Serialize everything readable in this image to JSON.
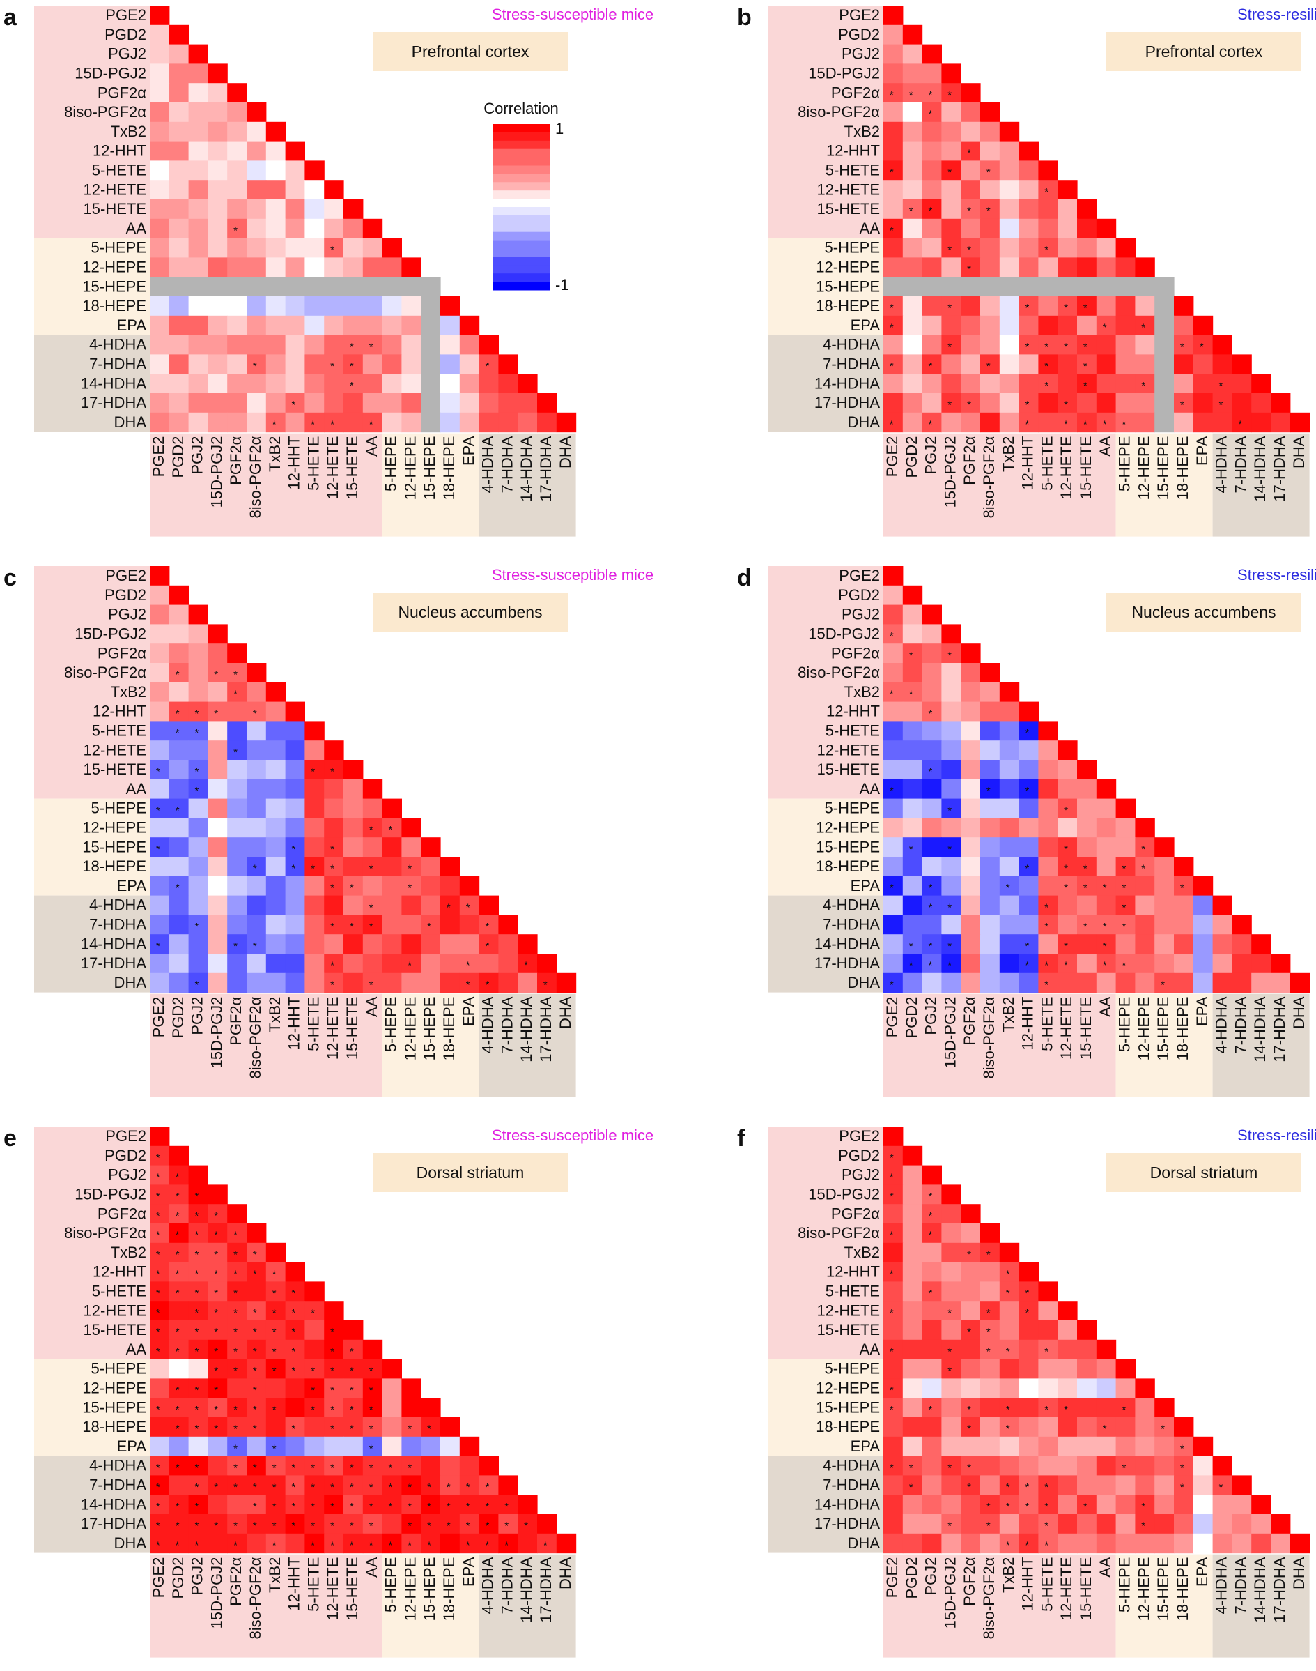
{
  "figure": {
    "legend": {
      "title": "Correlation",
      "max_label": "1",
      "min_label": "-1"
    },
    "star_symbol": "*",
    "colors": {
      "prostaglandin_group": "#fad7d7",
      "epa_group": "#fdf1e0",
      "dha_group": "#e2d9cf",
      "panel_title_box": "#fbe9cf",
      "missing": "#b4b4b4",
      "susceptible_text": "#e020e0",
      "resilient_text": "#2d2de0",
      "positive": "#ff0000",
      "negative": "#0000ff"
    }
  },
  "chart_data": [
    {
      "type": "heatmap",
      "panel": "a",
      "group_title": "Stress-susceptible mice",
      "title": "Prefrontal cortex",
      "labels": [
        "PGE2",
        "PGD2",
        "PGJ2",
        "15D-PGJ2",
        "PGF2α",
        "8iso-PGF2α",
        "TxB2",
        "12-HHT",
        "5-HETE",
        "12-HETE",
        "15-HETE",
        "AA",
        "5-HEPE",
        "12-HEPE",
        "15-HEPE",
        "18-HEPE",
        "EPA",
        "4-HDHA",
        "7-HDHA",
        "14-HDHA",
        "17-HDHA",
        "DHA"
      ],
      "value_range": [
        -1,
        1
      ],
      "missing_variable": "15-HEPE",
      "pattern": "moderate positive correlations; weak negatives near 5-HETE and 18-HEPE",
      "seed": 11,
      "star_fraction": 0.22
    },
    {
      "type": "heatmap",
      "panel": "b",
      "group_title": "Stress-resilient mice",
      "title": "Prefrontal cortex",
      "labels": [
        "PGE2",
        "PGD2",
        "PGJ2",
        "15D-PGJ2",
        "PGF2α",
        "8iso-PGF2α",
        "TxB2",
        "12-HHT",
        "5-HETE",
        "12-HETE",
        "15-HETE",
        "AA",
        "5-HEPE",
        "12-HEPE",
        "15-HEPE",
        "18-HEPE",
        "EPA",
        "4-HDHA",
        "7-HDHA",
        "14-HDHA",
        "17-HDHA",
        "DHA"
      ],
      "value_range": [
        -1,
        1
      ],
      "missing_variable": "15-HEPE",
      "pattern": "strong positive correlations overall; sparse negatives in PGD2 and TxB2 columns",
      "seed": 23,
      "star_fraction": 0.28
    },
    {
      "type": "heatmap",
      "panel": "c",
      "group_title": "Stress-susceptible mice",
      "title": "Nucleus accumbens",
      "labels": [
        "PGE2",
        "PGD2",
        "PGJ2",
        "15D-PGJ2",
        "PGF2α",
        "8iso-PGF2α",
        "TxB2",
        "12-HHT",
        "5-HETE",
        "12-HETE",
        "15-HETE",
        "AA",
        "5-HEPE",
        "12-HEPE",
        "15-HEPE",
        "18-HEPE",
        "EPA",
        "4-HDHA",
        "7-HDHA",
        "14-HDHA",
        "17-HDHA",
        "DHA"
      ],
      "value_range": [
        -1,
        1
      ],
      "missing_variable": null,
      "pattern": "prostaglandins negatively correlated with HETE/HEPE/HDHA block; strong positive lower-right block",
      "seed": 37,
      "star_fraction": 0.3
    },
    {
      "type": "heatmap",
      "panel": "d",
      "group_title": "Stress-resilient mice",
      "title": "Nucleus accumbens",
      "labels": [
        "PGE2",
        "PGD2",
        "PGJ2",
        "15D-PGJ2",
        "PGF2α",
        "8iso-PGF2α",
        "TxB2",
        "12-HHT",
        "5-HETE",
        "12-HETE",
        "15-HETE",
        "AA",
        "5-HEPE",
        "12-HEPE",
        "15-HEPE",
        "18-HEPE",
        "EPA",
        "4-HDHA",
        "7-HDHA",
        "14-HDHA",
        "17-HDHA",
        "DHA"
      ],
      "value_range": [
        -1,
        1
      ],
      "missing_variable": null,
      "pattern": "strong negative correlations between prostaglandins and downstream block; positive lower-right block",
      "seed": 41,
      "star_fraction": 0.26
    },
    {
      "type": "heatmap",
      "panel": "e",
      "group_title": "Stress-susceptible mice",
      "title": "Dorsal striatum",
      "labels": [
        "PGE2",
        "PGD2",
        "PGJ2",
        "15D-PGJ2",
        "PGF2α",
        "8iso-PGF2α",
        "TxB2",
        "12-HHT",
        "5-HETE",
        "12-HETE",
        "15-HETE",
        "AA",
        "5-HEPE",
        "12-HEPE",
        "15-HEPE",
        "18-HEPE",
        "EPA",
        "4-HDHA",
        "7-HDHA",
        "14-HDHA",
        "17-HDHA",
        "DHA"
      ],
      "value_range": [
        -1,
        1
      ],
      "missing_variable": null,
      "pattern": "nearly all strong positive correlations; weak negatives in EPA row",
      "seed": 53,
      "star_fraction": 0.55
    },
    {
      "type": "heatmap",
      "panel": "f",
      "group_title": "Stress-resilient mice",
      "title": "Dorsal striatum",
      "labels": [
        "PGE2",
        "PGD2",
        "PGJ2",
        "15D-PGJ2",
        "PGF2α",
        "8iso-PGF2α",
        "TxB2",
        "12-HHT",
        "5-HETE",
        "12-HETE",
        "15-HETE",
        "AA",
        "5-HEPE",
        "12-HEPE",
        "15-HEPE",
        "18-HEPE",
        "EPA",
        "4-HDHA",
        "7-HDHA",
        "14-HDHA",
        "17-HDHA",
        "DHA"
      ],
      "value_range": [
        -1,
        1
      ],
      "missing_variable": null,
      "pattern": "mostly positive correlations; weaker values in 12-HEPE row and EPA column",
      "seed": 67,
      "star_fraction": 0.3
    }
  ]
}
